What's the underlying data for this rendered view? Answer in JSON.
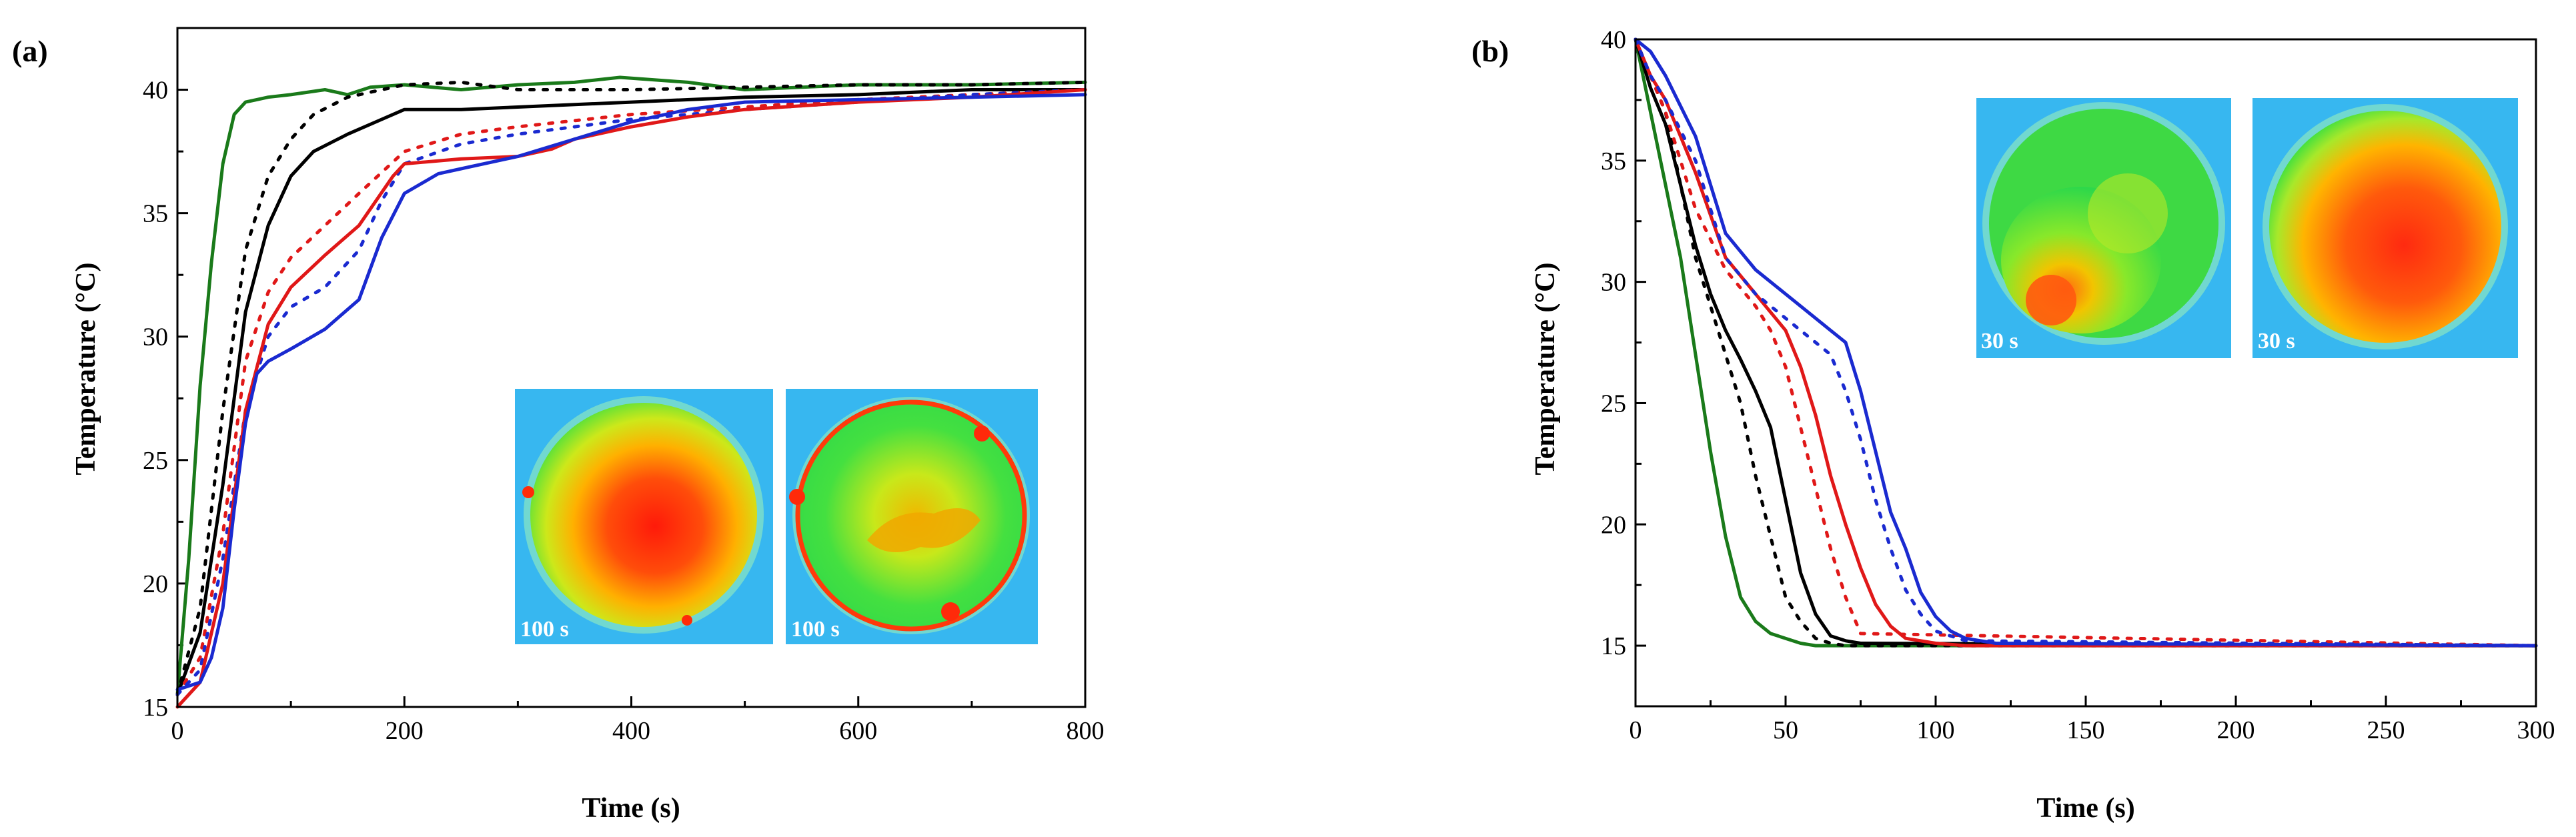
{
  "chart_data": [
    {
      "type": "line",
      "panel_label": "(a)",
      "xlabel": "Time (s)",
      "ylabel": "Temperature (°C)",
      "xlim": [
        0,
        800
      ],
      "ylim": [
        15,
        42.5
      ],
      "xticks": [
        0,
        200,
        400,
        600,
        800
      ],
      "yticks": [
        15,
        20,
        25,
        30,
        35,
        40
      ],
      "series": [
        {
          "name": "green solid",
          "color": "#1a7a1a",
          "dash": "solid",
          "x": [
            0,
            10,
            20,
            30,
            40,
            50,
            60,
            80,
            100,
            130,
            150,
            170,
            200,
            250,
            300,
            350,
            390,
            450,
            500,
            600,
            700,
            800
          ],
          "y": [
            15.5,
            21,
            28,
            33,
            37,
            39,
            39.5,
            39.7,
            39.8,
            40,
            39.8,
            40.1,
            40.2,
            40,
            40.2,
            40.3,
            40.5,
            40.3,
            40,
            40.2,
            40.2,
            40.3
          ]
        },
        {
          "name": "black dotted",
          "color": "#000000",
          "dash": "dotted",
          "x": [
            0,
            20,
            40,
            60,
            80,
            100,
            120,
            150,
            200,
            250,
            300,
            400,
            500,
            600,
            700,
            800
          ],
          "y": [
            15.5,
            19,
            27,
            33.5,
            36.5,
            38,
            39,
            39.7,
            40.2,
            40.3,
            40,
            40,
            40.1,
            40.2,
            40.2,
            40.3
          ]
        },
        {
          "name": "black solid",
          "color": "#000000",
          "dash": "solid",
          "x": [
            0,
            20,
            40,
            60,
            80,
            100,
            120,
            150,
            180,
            200,
            250,
            300,
            400,
            500,
            600,
            700,
            800
          ],
          "y": [
            15.5,
            18,
            24,
            31,
            34.5,
            36.5,
            37.5,
            38.2,
            38.8,
            39.2,
            39.2,
            39.3,
            39.5,
            39.7,
            39.8,
            40,
            40
          ]
        },
        {
          "name": "red dotted",
          "color": "#e01818",
          "dash": "dotted",
          "x": [
            0,
            20,
            40,
            60,
            80,
            100,
            130,
            160,
            200,
            250,
            300,
            400,
            500,
            600,
            700,
            800
          ],
          "y": [
            15.5,
            17,
            22,
            29,
            31.8,
            33.2,
            34.5,
            35.8,
            37.5,
            38.2,
            38.5,
            39,
            39.3,
            39.6,
            39.8,
            40
          ]
        },
        {
          "name": "blue dotted",
          "color": "#1a2ad0",
          "dash": "dotted",
          "x": [
            0,
            20,
            40,
            60,
            80,
            100,
            130,
            160,
            180,
            200,
            250,
            300,
            400,
            500,
            600,
            700,
            800
          ],
          "y": [
            15.5,
            16.5,
            21,
            27,
            30,
            31.2,
            32,
            33.5,
            35.5,
            37,
            37.8,
            38.2,
            38.8,
            39.2,
            39.5,
            39.8,
            40
          ]
        },
        {
          "name": "red solid",
          "color": "#e01818",
          "dash": "solid",
          "x": [
            0,
            20,
            40,
            60,
            80,
            100,
            130,
            160,
            190,
            200,
            250,
            300,
            330,
            350,
            400,
            450,
            500,
            600,
            700,
            800
          ],
          "y": [
            15,
            16,
            20,
            27,
            30.5,
            32,
            33.3,
            34.5,
            36.5,
            37,
            37.2,
            37.3,
            37.6,
            38,
            38.5,
            38.9,
            39.2,
            39.5,
            39.7,
            40
          ]
        },
        {
          "name": "blue solid",
          "color": "#1a2ad0",
          "dash": "solid",
          "x": [
            0,
            20,
            30,
            40,
            50,
            60,
            70,
            80,
            100,
            130,
            160,
            180,
            200,
            230,
            250,
            300,
            350,
            400,
            450,
            500,
            600,
            700,
            800
          ],
          "y": [
            15.7,
            16,
            17,
            19,
            23,
            26.5,
            28.5,
            29,
            29.5,
            30.3,
            31.5,
            34,
            35.8,
            36.6,
            36.8,
            37.3,
            38,
            38.7,
            39.2,
            39.5,
            39.6,
            39.7,
            39.8
          ]
        }
      ],
      "insets": [
        {
          "label": "100 s"
        },
        {
          "label": "100 s"
        }
      ]
    },
    {
      "type": "line",
      "panel_label": "(b)",
      "xlabel": "Time (s)",
      "ylabel": "Temperature (°C)",
      "xlim": [
        0,
        300
      ],
      "ylim": [
        12.5,
        40
      ],
      "xticks": [
        0,
        50,
        100,
        150,
        200,
        250,
        300
      ],
      "yticks": [
        15,
        20,
        25,
        30,
        35,
        40
      ],
      "series": [
        {
          "name": "green solid",
          "color": "#1a7a1a",
          "dash": "solid",
          "x": [
            0,
            5,
            10,
            15,
            20,
            25,
            30,
            35,
            40,
            45,
            50,
            55,
            60,
            300
          ],
          "y": [
            40,
            37,
            34,
            31,
            27,
            23,
            19.5,
            17,
            16,
            15.5,
            15.3,
            15.1,
            15,
            15
          ]
        },
        {
          "name": "black dotted",
          "color": "#000000",
          "dash": "dotted",
          "x": [
            0,
            5,
            10,
            15,
            20,
            25,
            30,
            35,
            40,
            45,
            50,
            55,
            60,
            65,
            70,
            300
          ],
          "y": [
            40,
            38.5,
            37,
            34,
            31,
            29,
            27,
            25,
            22,
            19.5,
            17,
            16,
            15.3,
            15.1,
            15,
            15
          ]
        },
        {
          "name": "black solid",
          "color": "#000000",
          "dash": "solid",
          "x": [
            0,
            5,
            10,
            15,
            20,
            25,
            30,
            35,
            40,
            45,
            50,
            55,
            60,
            65,
            70,
            75,
            300
          ],
          "y": [
            40,
            38,
            36.5,
            34,
            31.5,
            29.5,
            28,
            26.8,
            25.5,
            24,
            21,
            18,
            16.3,
            15.4,
            15.2,
            15.1,
            15
          ]
        },
        {
          "name": "red dotted",
          "color": "#e01818",
          "dash": "dotted",
          "x": [
            0,
            5,
            10,
            20,
            30,
            40,
            45,
            50,
            55,
            60,
            65,
            70,
            75,
            300
          ],
          "y": [
            40,
            38.5,
            37,
            33,
            30.5,
            29,
            28,
            26.5,
            24,
            21.5,
            19,
            17,
            15.5,
            15
          ]
        },
        {
          "name": "red solid",
          "color": "#e01818",
          "dash": "solid",
          "x": [
            0,
            5,
            10,
            20,
            30,
            40,
            50,
            55,
            60,
            65,
            70,
            75,
            80,
            85,
            90,
            100,
            110,
            120,
            300
          ],
          "y": [
            40,
            38.5,
            37.5,
            34.5,
            31,
            29.5,
            28,
            26.5,
            24.5,
            22,
            20,
            18.2,
            16.7,
            15.8,
            15.3,
            15.1,
            15,
            15,
            15
          ]
        },
        {
          "name": "blue dotted",
          "color": "#1a2ad0",
          "dash": "dotted",
          "x": [
            0,
            5,
            10,
            20,
            30,
            40,
            50,
            55,
            60,
            65,
            70,
            75,
            80,
            85,
            90,
            95,
            100,
            110,
            300
          ],
          "y": [
            40,
            38.5,
            37.5,
            35,
            31,
            29.5,
            28.5,
            28,
            27.5,
            27,
            25.5,
            23.5,
            21,
            19,
            17.3,
            16.3,
            15.6,
            15.2,
            15
          ]
        },
        {
          "name": "blue solid",
          "color": "#1a2ad0",
          "dash": "solid",
          "x": [
            0,
            5,
            10,
            20,
            30,
            40,
            50,
            60,
            65,
            70,
            75,
            80,
            85,
            90,
            95,
            100,
            105,
            110,
            120,
            300
          ],
          "y": [
            40,
            39.5,
            38.5,
            36,
            32,
            30.5,
            29.5,
            28.5,
            28,
            27.5,
            25.5,
            23,
            20.5,
            19,
            17.2,
            16.2,
            15.6,
            15.3,
            15.1,
            15
          ]
        }
      ],
      "insets": [
        {
          "label": "30 s"
        },
        {
          "label": "30 s"
        }
      ]
    }
  ]
}
